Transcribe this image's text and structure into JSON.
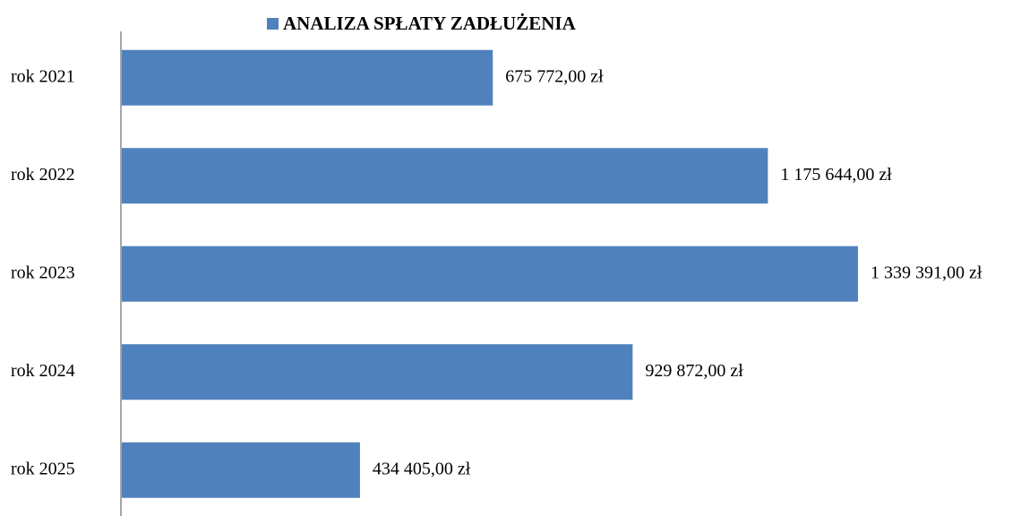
{
  "chart_data": {
    "type": "bar",
    "orientation": "horizontal",
    "categories": [
      "rok 2021",
      "rok 2022",
      "rok 2023",
      "rok 2024",
      "rok 2025"
    ],
    "series": [
      {
        "name": "ANALIZA SPŁATY ZADŁUŻENIA",
        "color": "#4f81bd",
        "values": [
          675772,
          1175644,
          1339391,
          929872,
          434405
        ],
        "value_labels": [
          "675 772,00 zł",
          "1 175 644,00 zł",
          "1 339 391,00 zł",
          "929 872,00 zł",
          "434 405,00 zł"
        ]
      }
    ],
    "legend": "top"
  }
}
